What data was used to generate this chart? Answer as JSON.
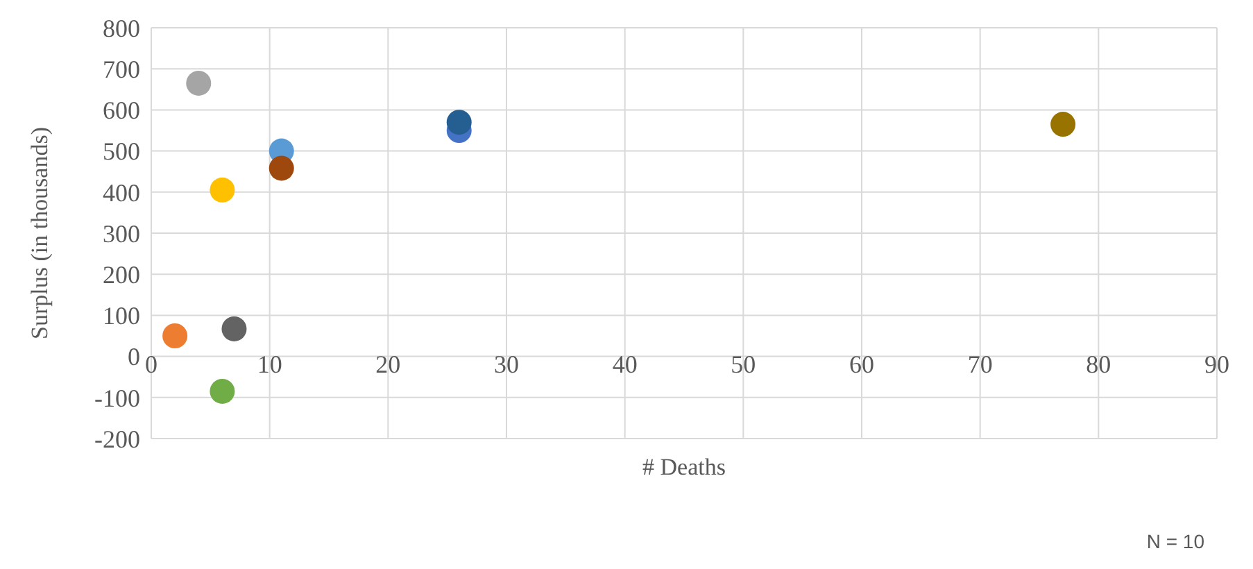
{
  "chart_data": {
    "type": "scatter",
    "xlabel": "# Deaths",
    "ylabel": "Surplus (in thousands)",
    "x": [
      4,
      6,
      2,
      7,
      6,
      11,
      11,
      26,
      26,
      77
    ],
    "values": [
      665,
      405,
      50,
      67,
      -85,
      500,
      458,
      550,
      570,
      565
    ],
    "colors": [
      "#a5a5a5",
      "#ffc000",
      "#ed7d31",
      "#636363",
      "#70ad47",
      "#5b9bd5",
      "#9e480e",
      "#4472c4",
      "#255e91",
      "#997300"
    ],
    "xlim": [
      0,
      90
    ],
    "xticks": [
      0,
      10,
      20,
      30,
      40,
      50,
      60,
      70,
      80,
      90
    ],
    "ylim": [
      -200,
      800
    ],
    "yticks": [
      -200,
      -100,
      0,
      100,
      200,
      300,
      400,
      500,
      600,
      700,
      800
    ],
    "grid": true,
    "marker": "circle",
    "annotations": [
      "N = 10"
    ]
  }
}
